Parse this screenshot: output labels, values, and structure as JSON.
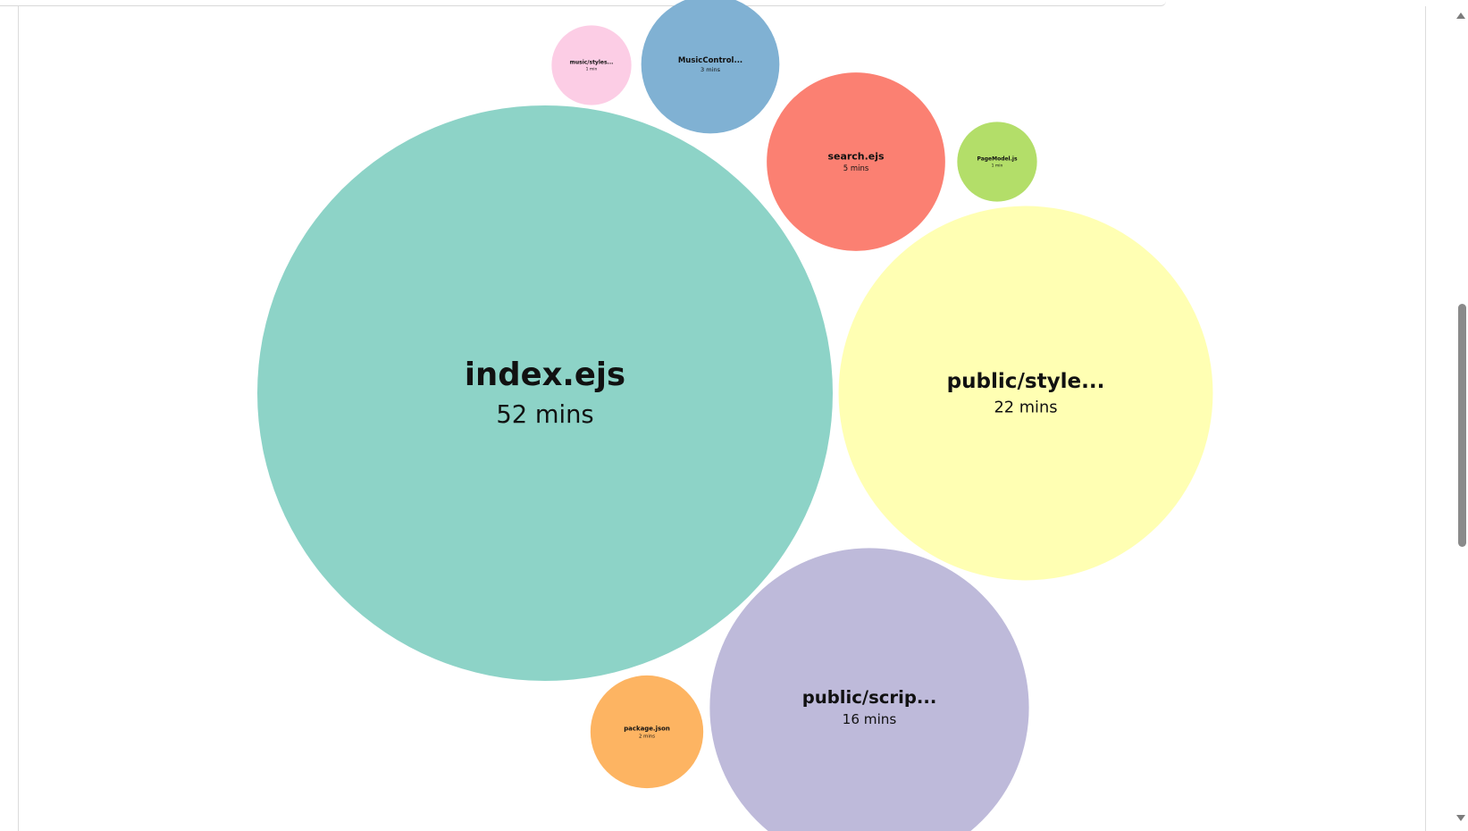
{
  "chart_data": {
    "type": "bubble",
    "title": "",
    "items": [
      {
        "label": "index.ejs",
        "value": "52 mins",
        "minutes": 52,
        "color": "#8dd3c7"
      },
      {
        "label": "public/style...",
        "value": "22 mins",
        "minutes": 22,
        "color": "#ffffb3"
      },
      {
        "label": "public/scrip...",
        "value": "16 mins",
        "minutes": 16,
        "color": "#bebada"
      },
      {
        "label": "search.ejs",
        "value": "5 mins",
        "minutes": 5,
        "color": "#fb8072"
      },
      {
        "label": "MusicControl...",
        "value": "3 mins",
        "minutes": 3,
        "color": "#80b1d3"
      },
      {
        "label": "package.json",
        "value": "2 mins",
        "minutes": 2,
        "color": "#fdb462"
      },
      {
        "label": "PageModel.js",
        "value": "1 min",
        "minutes": 1,
        "color": "#b3de69"
      },
      {
        "label": "music/styles...",
        "value": "1 min",
        "minutes": 1,
        "color": "#fccde5"
      }
    ]
  },
  "scrollbar": {
    "up_icon": "triangle-up-icon",
    "down_icon": "triangle-down-icon"
  }
}
